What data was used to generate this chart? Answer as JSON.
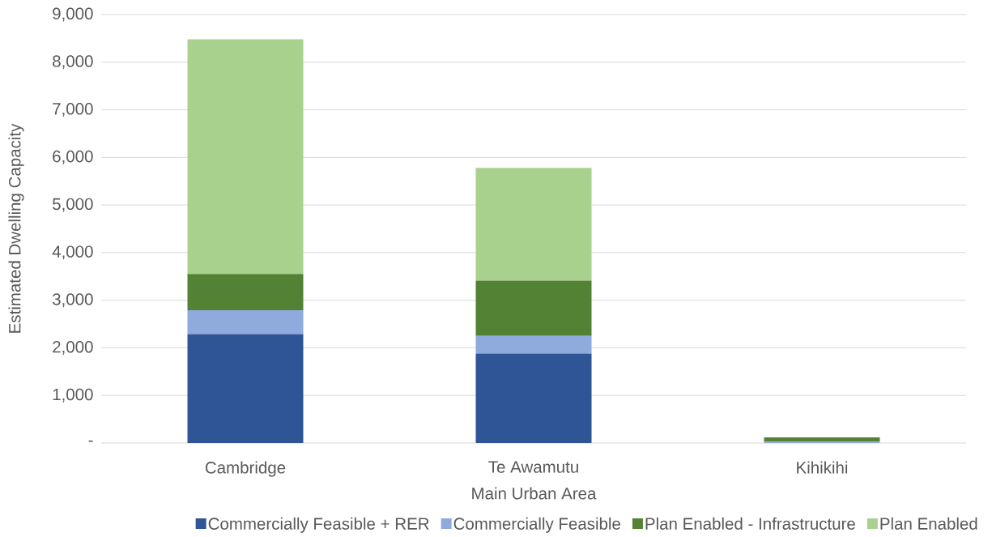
{
  "chart_data": {
    "type": "bar",
    "stacked": true,
    "xlabel": "Main Urban Area",
    "ylabel": "Estimated Dwelling Capacity",
    "categories": [
      "Cambridge",
      "Te Awamutu",
      "Kihikihi"
    ],
    "series": [
      {
        "name": "Commercially Feasible + RER",
        "color": "#2f5597",
        "values": [
          2290,
          1880,
          null
        ]
      },
      {
        "name": "Commercially Feasible",
        "color": "#8faadc",
        "values": [
          500,
          370,
          30
        ]
      },
      {
        "name": "Plan Enabled - Infrastructure",
        "color": "#548235",
        "values": [
          760,
          1160,
          90
        ]
      },
      {
        "name": "Plan Enabled",
        "color": "#a9d18e",
        "values": [
          4930,
          2370,
          null
        ]
      }
    ],
    "ylim": [
      0,
      9000
    ],
    "yticks": [
      {
        "value": 0,
        "label": "-"
      },
      {
        "value": 1000,
        "label": "1,000"
      },
      {
        "value": 2000,
        "label": "2,000"
      },
      {
        "value": 3000,
        "label": "3,000"
      },
      {
        "value": 4000,
        "label": "4,000"
      },
      {
        "value": 5000,
        "label": "5,000"
      },
      {
        "value": 6000,
        "label": "6,000"
      },
      {
        "value": 7000,
        "label": "7,000"
      },
      {
        "value": 8000,
        "label": "8,000"
      },
      {
        "value": 9000,
        "label": "9,000"
      }
    ],
    "grid": "y",
    "legend": "bottom"
  }
}
